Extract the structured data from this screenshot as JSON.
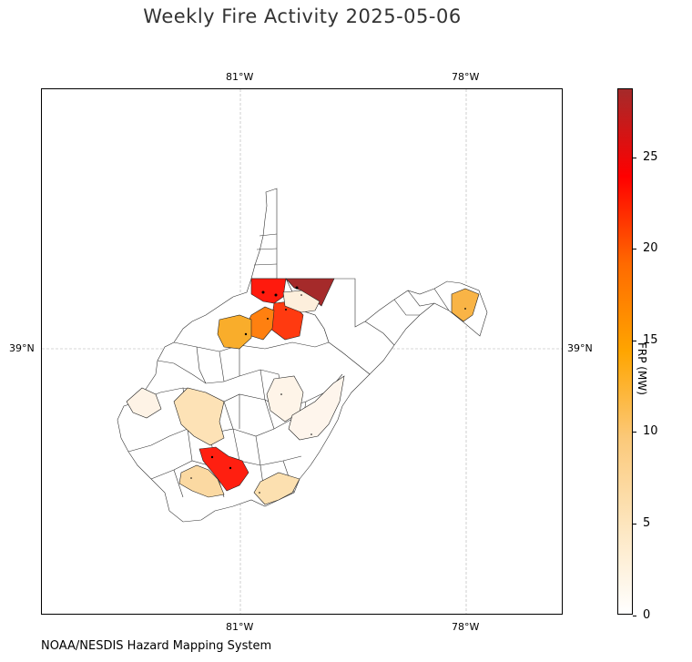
{
  "title": "Weekly Fire Activity 2025-05-06",
  "credit": "NOAA/NESDIS Hazard Mapping System",
  "map": {
    "lon_ticks": [
      "81°W",
      "78°W"
    ],
    "lat_ticks": [
      "39°N"
    ],
    "graticule": "dashed-gray",
    "region": "West Virginia counties",
    "counties_with_activity": [
      {
        "frp_level": "very-high",
        "color": "#a52a2a"
      },
      {
        "frp_level": "high",
        "color": "#ff1a0d"
      },
      {
        "frp_level": "high",
        "color": "#ff3a10"
      },
      {
        "frp_level": "high",
        "color": "#ff1f10"
      },
      {
        "frp_level": "medium",
        "color": "#ff8010"
      },
      {
        "frp_level": "medium",
        "color": "#f9ad2b"
      },
      {
        "frp_level": "medium",
        "color": "#f9b446"
      },
      {
        "frp_level": "low",
        "color": "#fde2b6"
      },
      {
        "frp_level": "low",
        "color": "#fce0b0"
      },
      {
        "frp_level": "low",
        "color": "#fbd9a2"
      },
      {
        "frp_level": "very-low",
        "color": "#fdefdc"
      },
      {
        "frp_level": "very-low",
        "color": "#fef3e6"
      },
      {
        "frp_level": "very-low",
        "color": "#fef4e8"
      },
      {
        "frp_level": "very-low",
        "color": "#fef5ec"
      }
    ]
  },
  "colorbar": {
    "label": "FRP (MW)",
    "ticks": [
      "0",
      "5",
      "10",
      "15",
      "20",
      "25"
    ],
    "range": [
      0,
      28.7
    ],
    "colors": [
      "#ffffff",
      "#fde6bf",
      "#fbc97a",
      "#ffa500",
      "#ff6a00",
      "#ff0000",
      "#a52a2a"
    ]
  }
}
